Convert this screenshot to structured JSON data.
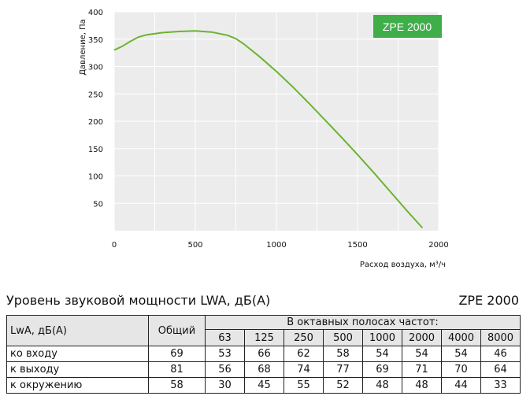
{
  "chart_data": {
    "type": "line",
    "title": "",
    "xlabel": "Расход воздуха, м³/ч",
    "ylabel": "Давление, Па",
    "xlim": [
      0,
      2000
    ],
    "ylim": [
      0,
      400
    ],
    "x_ticks": [
      "0",
      "500",
      "1000",
      "1500",
      "2000"
    ],
    "y_ticks": [
      "50",
      "100",
      "150",
      "200",
      "250",
      "300",
      "350",
      "400"
    ],
    "grid": true,
    "series": [
      {
        "name": "ZPE 2000",
        "color": "#6ab42e",
        "x": [
          0,
          50,
          100,
          150,
          200,
          300,
          400,
          500,
          600,
          700,
          750,
          800,
          900,
          1000,
          1100,
          1200,
          1300,
          1400,
          1500,
          1600,
          1700,
          1800,
          1900
        ],
        "y": [
          330,
          337,
          346,
          354,
          358,
          362,
          364,
          365,
          363,
          357,
          351,
          341,
          317,
          291,
          263,
          233,
          202,
          171,
          139,
          106,
          72,
          38,
          5
        ]
      }
    ],
    "legend_badge": "ZPE 2000",
    "badge_color": "#3fae49"
  },
  "sound": {
    "title": "Уровень звуковой мощности LWA, дБ(A)",
    "model": "ZPE 2000",
    "col_label": "LwA, дБ(A)",
    "col_total": "Общий",
    "bands_title": "В октавных полосах частот:",
    "bands": [
      "63",
      "125",
      "250",
      "500",
      "1000",
      "2000",
      "4000",
      "8000"
    ],
    "rows": [
      {
        "label": "ко входу",
        "total": "69",
        "values": [
          "53",
          "66",
          "62",
          "58",
          "54",
          "54",
          "54",
          "46"
        ]
      },
      {
        "label": "к выходу",
        "total": "81",
        "values": [
          "56",
          "68",
          "74",
          "77",
          "69",
          "71",
          "70",
          "64"
        ]
      },
      {
        "label": "к окружению",
        "total": "58",
        "values": [
          "30",
          "45",
          "55",
          "52",
          "48",
          "48",
          "44",
          "33"
        ]
      }
    ]
  }
}
